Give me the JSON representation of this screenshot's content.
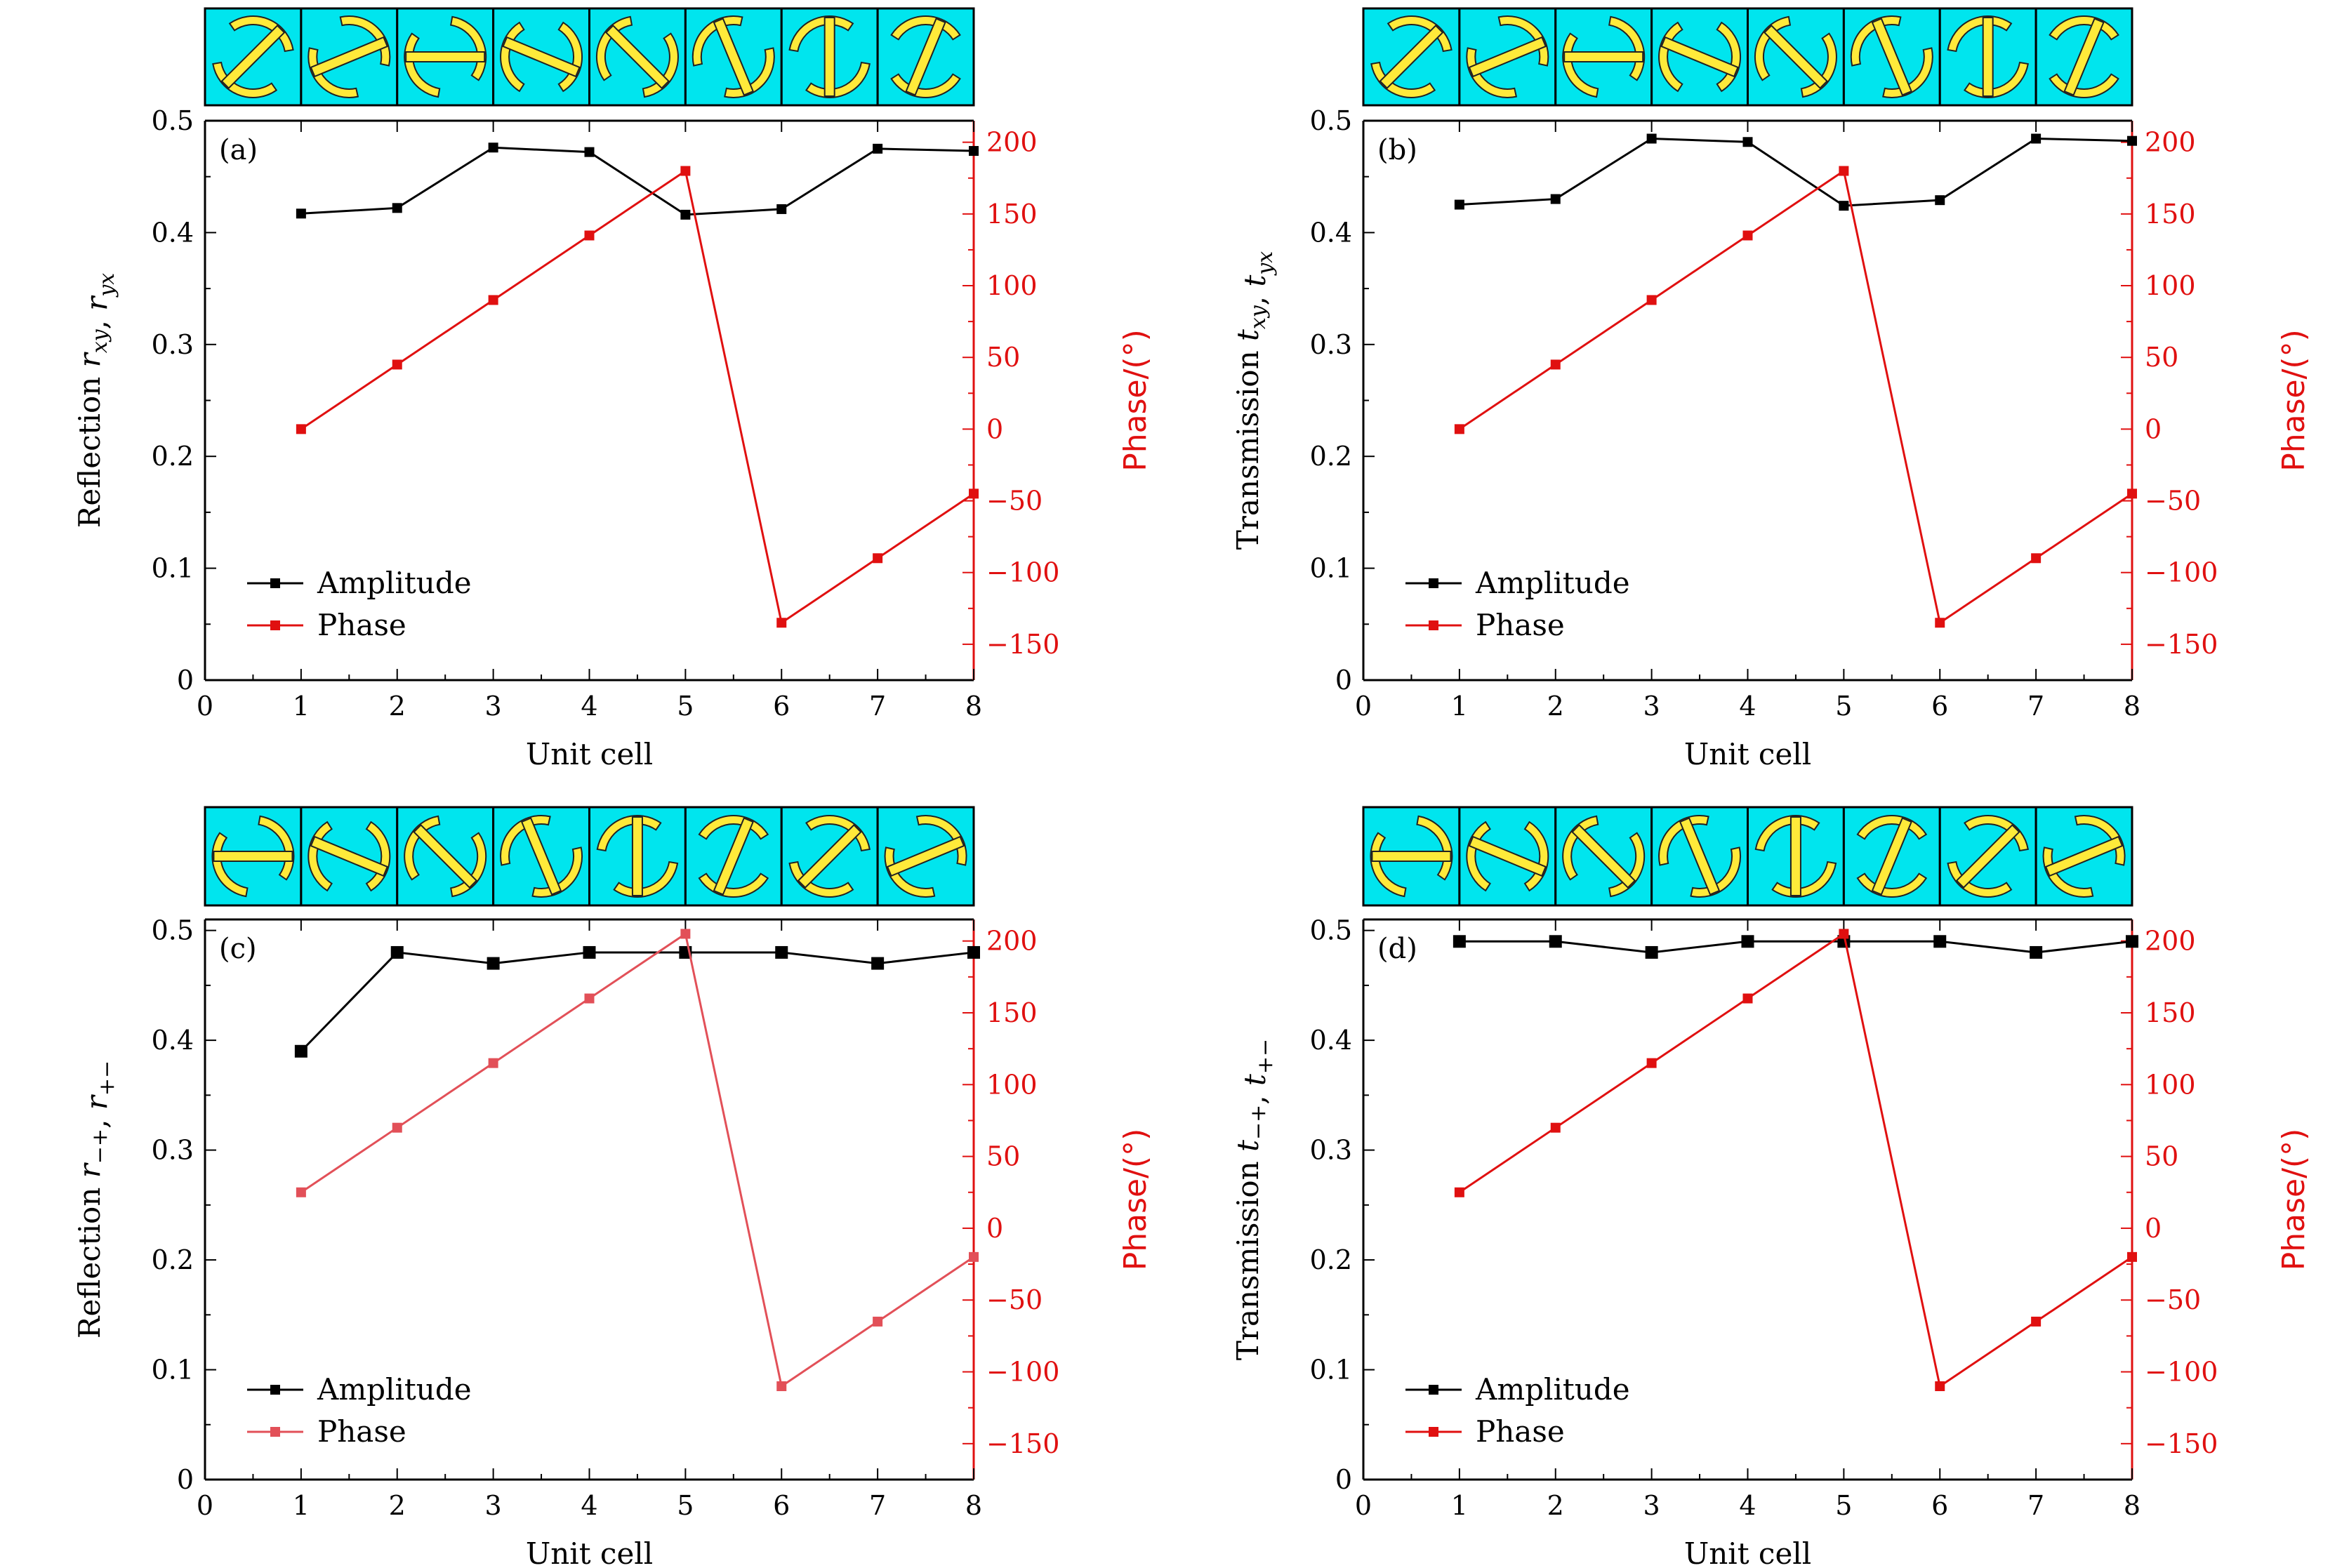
{
  "colors": {
    "amplitude": "#000000",
    "phase": "#e01010",
    "phase_c": "#e25058",
    "cell_background": "#00e5ee",
    "cell_shape": "#ffea3a",
    "cell_outline": "#222222"
  },
  "chart_data": [
    {
      "panel": "(a)",
      "type": "line",
      "xlabel": "Unit cell",
      "ylabel": "Reflection r_xy, r_yx",
      "y2label": "Phase/(°)",
      "xlim": [
        0,
        8
      ],
      "ylim": [
        0,
        0.5
      ],
      "y2lim": [
        -175,
        215
      ],
      "xticks": [
        "0",
        "1",
        "2",
        "3",
        "4",
        "5",
        "6",
        "7",
        "8"
      ],
      "yticks": [
        "0",
        "0.1",
        "0.2",
        "0.3",
        "0.4",
        "0.5"
      ],
      "y2ticks": [
        "−150",
        "−100",
        "−50",
        "0",
        "50",
        "100",
        "150",
        "200"
      ],
      "legend": [
        "Amplitude",
        "Phase"
      ],
      "x": [
        1,
        2,
        3,
        4,
        5,
        6,
        7,
        8
      ],
      "series": [
        {
          "name": "Amplitude",
          "axis": "left",
          "values": [
            0.417,
            0.422,
            0.476,
            0.472,
            0.416,
            0.421,
            0.475,
            0.473
          ]
        },
        {
          "name": "Phase",
          "axis": "right",
          "values": [
            0,
            45,
            90,
            135,
            180,
            -135,
            -90,
            -45
          ]
        }
      ],
      "cells": [
        -45,
        -22.5,
        0,
        22.5,
        45,
        67.5,
        90,
        112.5
      ]
    },
    {
      "panel": "(b)",
      "type": "line",
      "xlabel": "Unit cell",
      "ylabel": "Transmission t_xy, t_yx",
      "y2label": "Phase/(°)",
      "xlim": [
        0,
        8
      ],
      "ylim": [
        0,
        0.5
      ],
      "y2lim": [
        -175,
        215
      ],
      "xticks": [
        "0",
        "1",
        "2",
        "3",
        "4",
        "5",
        "6",
        "7",
        "8"
      ],
      "yticks": [
        "0",
        "0.1",
        "0.2",
        "0.3",
        "0.4",
        "0.5"
      ],
      "y2ticks": [
        "−150",
        "−100",
        "−50",
        "0",
        "50",
        "100",
        "150",
        "200"
      ],
      "legend": [
        "Amplitude",
        "Phase"
      ],
      "x": [
        1,
        2,
        3,
        4,
        5,
        6,
        7,
        8
      ],
      "series": [
        {
          "name": "Amplitude",
          "axis": "left",
          "values": [
            0.425,
            0.43,
            0.484,
            0.481,
            0.424,
            0.429,
            0.484,
            0.482
          ]
        },
        {
          "name": "Phase",
          "axis": "right",
          "values": [
            0,
            45,
            90,
            135,
            180,
            -135,
            -90,
            -45
          ]
        }
      ],
      "cells": [
        -45,
        -22.5,
        0,
        22.5,
        45,
        67.5,
        90,
        112.5
      ]
    },
    {
      "panel": "(c)",
      "type": "line",
      "xlabel": "Unit cell",
      "ylabel": "Reflection r_−+, r_+−",
      "y2label": "Phase/(°)",
      "xlim": [
        0,
        8
      ],
      "ylim": [
        0,
        0.51
      ],
      "y2lim": [
        -175,
        215
      ],
      "xticks": [
        "0",
        "1",
        "2",
        "3",
        "4",
        "5",
        "6",
        "7",
        "8"
      ],
      "yticks": [
        "0",
        "0.1",
        "0.2",
        "0.3",
        "0.4",
        "0.5"
      ],
      "y2ticks": [
        "−150",
        "−100",
        "−50",
        "0",
        "50",
        "100",
        "150",
        "200"
      ],
      "legend": [
        "Amplitude",
        "Phase"
      ],
      "x": [
        1,
        2,
        3,
        4,
        5,
        6,
        7,
        8
      ],
      "series": [
        {
          "name": "Amplitude",
          "axis": "left",
          "values": [
            0.39,
            0.48,
            0.47,
            0.48,
            0.48,
            0.48,
            0.47,
            0.48
          ]
        },
        {
          "name": "Phase",
          "axis": "right",
          "values": [
            25,
            70,
            115,
            160,
            205,
            -110,
            -65,
            -20
          ]
        }
      ],
      "cells": [
        0,
        22.5,
        45,
        67.5,
        90,
        112.5,
        135,
        157.5
      ]
    },
    {
      "panel": "(d)",
      "type": "line",
      "xlabel": "Unit cell",
      "ylabel": "Transmission t_−+, t_+−",
      "y2label": "Phase/(°)",
      "xlim": [
        0,
        8
      ],
      "ylim": [
        0,
        0.51
      ],
      "y2lim": [
        -175,
        215
      ],
      "xticks": [
        "0",
        "1",
        "2",
        "3",
        "4",
        "5",
        "6",
        "7",
        "8"
      ],
      "yticks": [
        "0",
        "0.1",
        "0.2",
        "0.3",
        "0.4",
        "0.5"
      ],
      "y2ticks": [
        "−150",
        "−100",
        "−50",
        "0",
        "50",
        "100",
        "150",
        "200"
      ],
      "legend": [
        "Amplitude",
        "Phase"
      ],
      "x": [
        1,
        2,
        3,
        4,
        5,
        6,
        7,
        8
      ],
      "series": [
        {
          "name": "Amplitude",
          "axis": "left",
          "values": [
            0.49,
            0.49,
            0.48,
            0.49,
            0.49,
            0.49,
            0.48,
            0.49
          ]
        },
        {
          "name": "Phase",
          "axis": "right",
          "values": [
            25,
            70,
            115,
            160,
            205,
            -110,
            -65,
            -20
          ]
        }
      ],
      "cells": [
        0,
        22.5,
        45,
        67.5,
        90,
        112.5,
        135,
        157.5
      ]
    }
  ]
}
